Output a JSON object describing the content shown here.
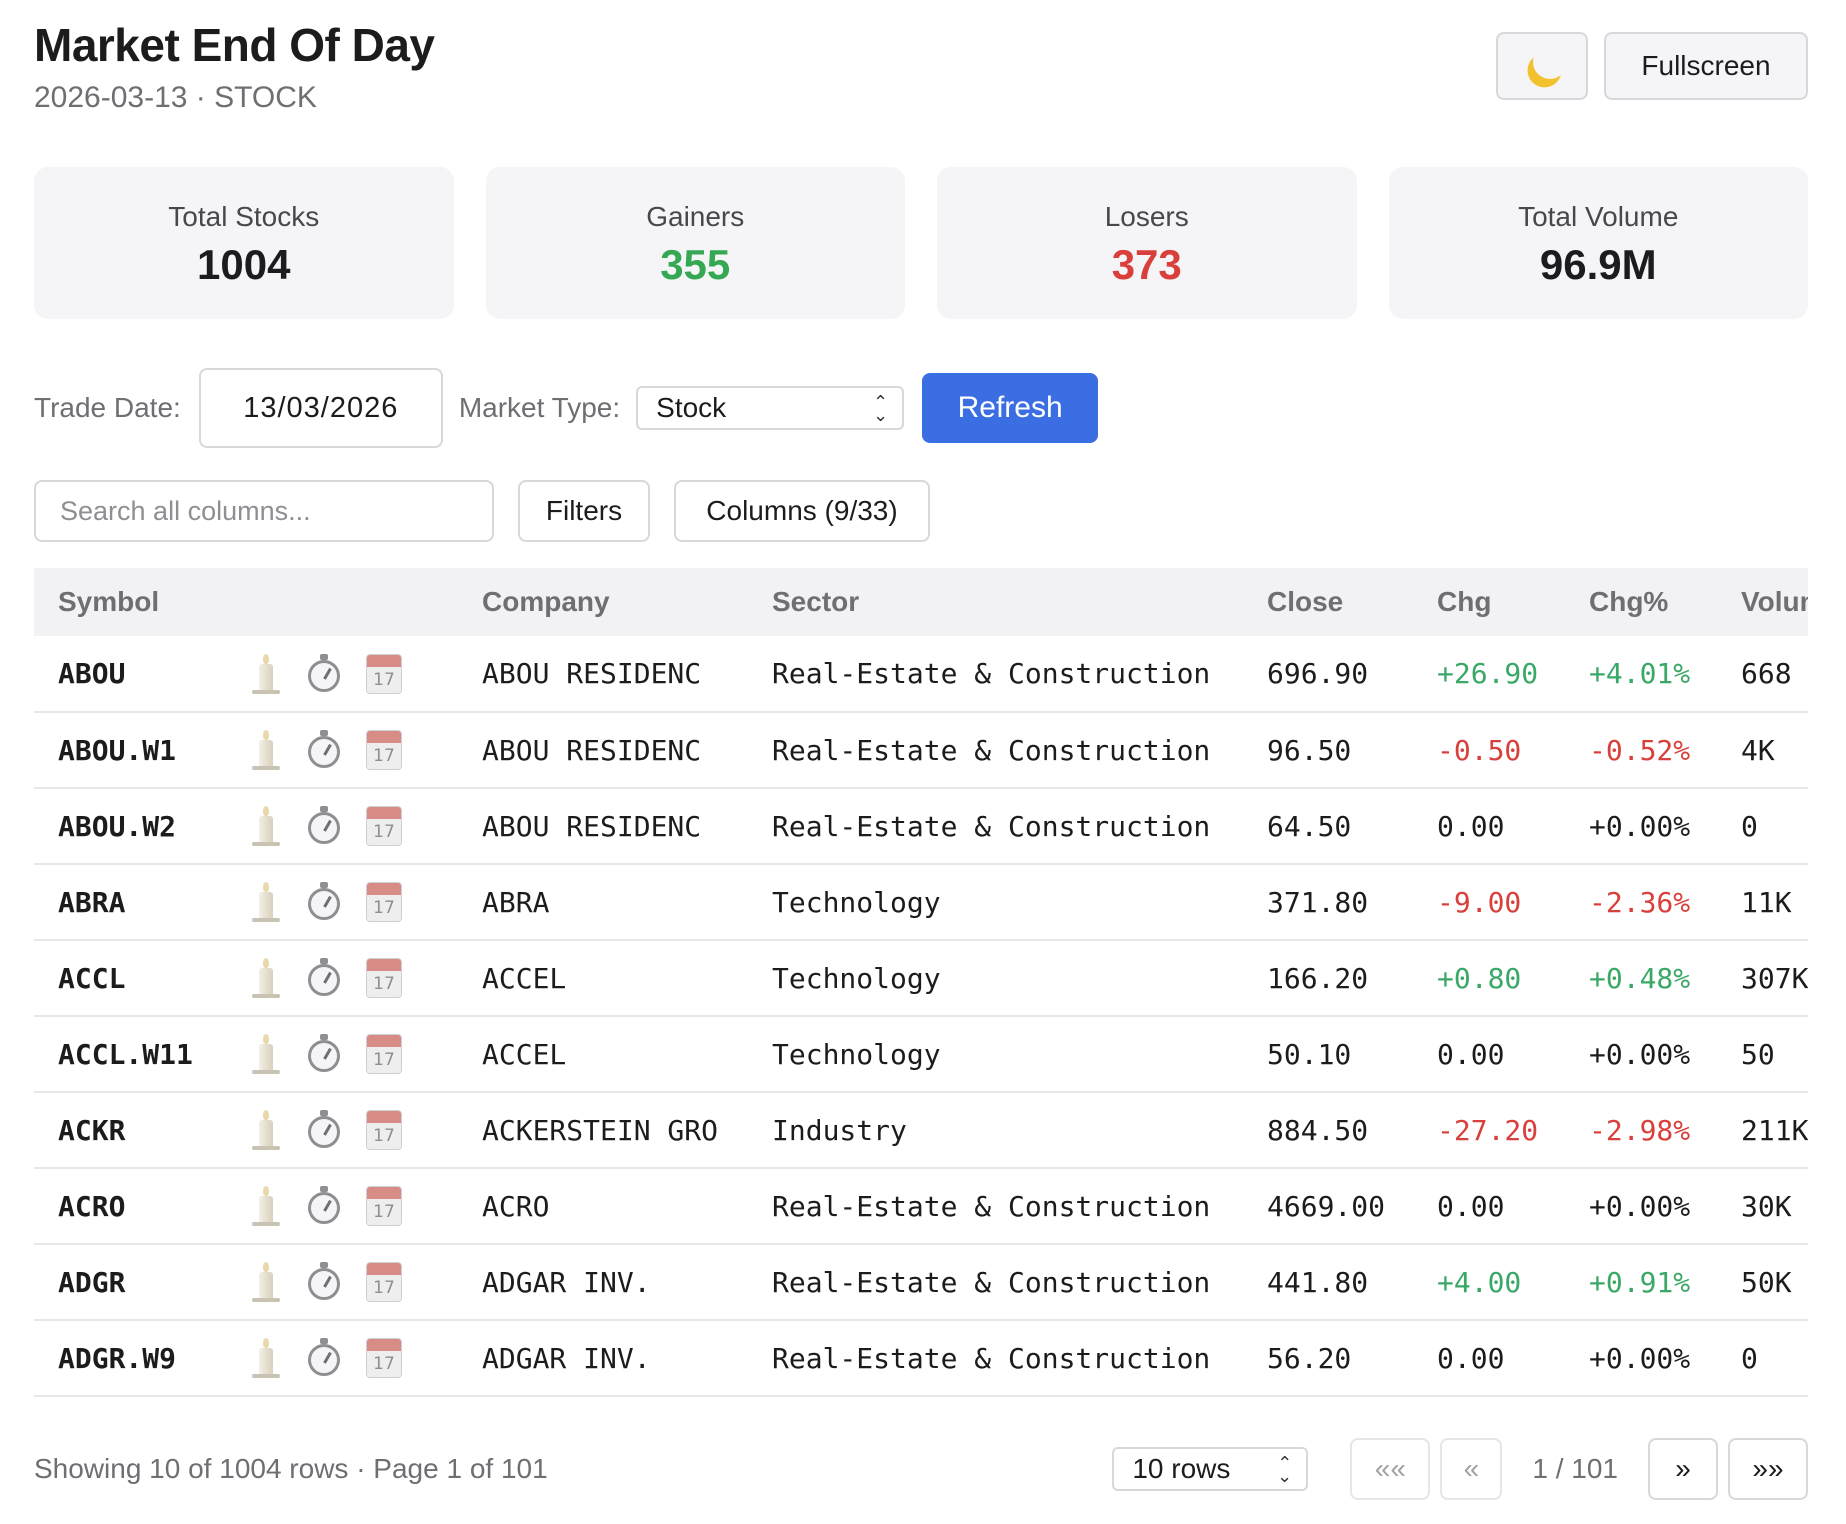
{
  "header": {
    "title": "Market End Of Day",
    "subtitle": "2026-03-13 · STOCK"
  },
  "actions": {
    "fullscreen_label": "Fullscreen",
    "theme_icon": "moon-icon"
  },
  "stats": [
    {
      "label": "Total Stocks",
      "value": "1004",
      "color": "#1c1c1e"
    },
    {
      "label": "Gainers",
      "value": "355",
      "color": "#34a853"
    },
    {
      "label": "Losers",
      "value": "373",
      "color": "#d93f3b"
    },
    {
      "label": "Total Volume",
      "value": "96.9M",
      "color": "#1c1c1e"
    }
  ],
  "controls": {
    "trade_date_label": "Trade Date:",
    "trade_date_value": "13/03/2026",
    "market_type_label": "Market Type:",
    "market_type_value": "Stock",
    "refresh_label": "Refresh"
  },
  "toolbar": {
    "search_placeholder": "Search all columns...",
    "filters_label": "Filters",
    "columns_label": "Columns (9/33)"
  },
  "table": {
    "headers": [
      "Symbol",
      "",
      "Company",
      "Sector",
      "Close",
      "Chg",
      "Chg%",
      "Volume"
    ],
    "rows": [
      {
        "symbol": "ABOU",
        "company": "ABOU RESIDENC",
        "sector": "Real-Estate & Construction",
        "close": "696.90",
        "chg": "+26.90",
        "chg_pct": "+4.01%",
        "volume": "668",
        "dir": "pos"
      },
      {
        "symbol": "ABOU.W1",
        "company": "ABOU RESIDENC",
        "sector": "Real-Estate & Construction",
        "close": "96.50",
        "chg": "-0.50",
        "chg_pct": "-0.52%",
        "volume": "4K",
        "dir": "neg"
      },
      {
        "symbol": "ABOU.W2",
        "company": "ABOU RESIDENC",
        "sector": "Real-Estate & Construction",
        "close": "64.50",
        "chg": "0.00",
        "chg_pct": "+0.00%",
        "volume": "0",
        "dir": "flat"
      },
      {
        "symbol": "ABRA",
        "company": "ABRA",
        "sector": "Technology",
        "close": "371.80",
        "chg": "-9.00",
        "chg_pct": "-2.36%",
        "volume": "11K",
        "dir": "neg"
      },
      {
        "symbol": "ACCL",
        "company": "ACCEL",
        "sector": "Technology",
        "close": "166.20",
        "chg": "+0.80",
        "chg_pct": "+0.48%",
        "volume": "307K",
        "dir": "pos"
      },
      {
        "symbol": "ACCL.W11",
        "company": "ACCEL",
        "sector": "Technology",
        "close": "50.10",
        "chg": "0.00",
        "chg_pct": "+0.00%",
        "volume": "50",
        "dir": "flat"
      },
      {
        "symbol": "ACKR",
        "company": "ACKERSTEIN GRO",
        "sector": "Industry",
        "close": "884.50",
        "chg": "-27.20",
        "chg_pct": "-2.98%",
        "volume": "211K",
        "dir": "neg"
      },
      {
        "symbol": "ACRO",
        "company": "ACRO",
        "sector": "Real-Estate & Construction",
        "close": "4669.00",
        "chg": "0.00",
        "chg_pct": "+0.00%",
        "volume": "30K",
        "dir": "flat"
      },
      {
        "symbol": "ADGR",
        "company": "ADGAR INV.",
        "sector": "Real-Estate & Construction",
        "close": "441.80",
        "chg": "+4.00",
        "chg_pct": "+0.91%",
        "volume": "50K",
        "dir": "pos"
      },
      {
        "symbol": "ADGR.W9",
        "company": "ADGAR INV.",
        "sector": "Real-Estate & Construction",
        "close": "56.20",
        "chg": "0.00",
        "chg_pct": "+0.00%",
        "volume": "0",
        "dir": "flat"
      }
    ],
    "row_icons": [
      "candle-icon",
      "timer-icon",
      "calendar-icon"
    ],
    "calendar_day": "17"
  },
  "footer": {
    "summary": "Showing 10 of 1004 rows · Page 1 of 101",
    "rows_select_value": "10 rows",
    "first_label": "««",
    "prev_label": "«",
    "page_info": "1 / 101",
    "next_label": "»",
    "last_label": "»»"
  },
  "colors": {
    "accent": "#3b6ee3",
    "positive": "#3aa866",
    "negative": "#d93f3b"
  }
}
